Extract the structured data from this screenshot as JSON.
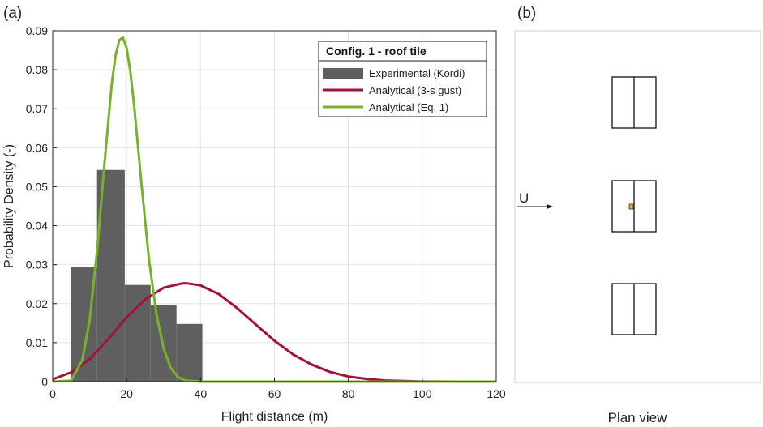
{
  "panel_a_label": "(a)",
  "panel_b_label": "(b)",
  "chart_data": {
    "type": "bar",
    "xlabel": "Flight distance (m)",
    "ylabel": "Probability Density (-)",
    "xlim": [
      0,
      120
    ],
    "ylim": [
      0,
      0.09
    ],
    "xticks": [
      0,
      20,
      40,
      60,
      80,
      100,
      120
    ],
    "yticks": [
      0,
      0.01,
      0.02,
      0.03,
      0.04,
      0.05,
      0.06,
      0.07,
      0.08,
      0.09
    ],
    "grid": true,
    "legend": {
      "title": "Config. 1 - roof tile",
      "placement": "top-right",
      "entries": [
        "Experimental (Kordi)",
        "Analytical (3-s gust)",
        "Analytical (Eq. 1)"
      ]
    },
    "histogram": {
      "name": "Experimental (Kordi)",
      "color": "#5f5f5f",
      "bin_edges": [
        5,
        12,
        19.5,
        26.5,
        33.5,
        40.5
      ],
      "values": [
        0.0295,
        0.0543,
        0.0248,
        0.0197,
        0.0148
      ]
    },
    "series": [
      {
        "name": "Analytical (3-s gust)",
        "color": "#a3123a",
        "x": [
          0,
          5,
          10,
          15,
          20,
          25,
          30,
          35,
          36.5,
          40,
          45,
          50,
          55,
          60,
          65,
          70,
          75,
          80,
          85,
          90,
          100,
          110,
          120
        ],
        "y": [
          0.0006,
          0.0024,
          0.0058,
          0.0109,
          0.0165,
          0.0211,
          0.0241,
          0.0252,
          0.0252,
          0.0247,
          0.0224,
          0.0188,
          0.0146,
          0.0105,
          0.007,
          0.0044,
          0.0025,
          0.0013,
          0.0007,
          0.0003,
          5e-05,
          0.0,
          0.0
        ]
      },
      {
        "name": "Analytical (Eq. 1)",
        "color": "#77b32a",
        "x": [
          0,
          5,
          8,
          10,
          12,
          14,
          16,
          17,
          18,
          19,
          20,
          21,
          22,
          23,
          24,
          26,
          28,
          30,
          32,
          34,
          36,
          40,
          60,
          80,
          100,
          120
        ],
        "y": [
          0.0,
          0.0003,
          0.0055,
          0.0158,
          0.0335,
          0.0558,
          0.0765,
          0.0836,
          0.0876,
          0.0883,
          0.0855,
          0.0796,
          0.0711,
          0.0612,
          0.0509,
          0.0318,
          0.0177,
          0.0085,
          0.0034,
          0.0011,
          0.0003,
          0.0,
          0.0,
          0.0,
          0.0,
          0.0
        ]
      }
    ]
  },
  "plan_view": {
    "wind_label": "U",
    "caption": "Plan view"
  }
}
